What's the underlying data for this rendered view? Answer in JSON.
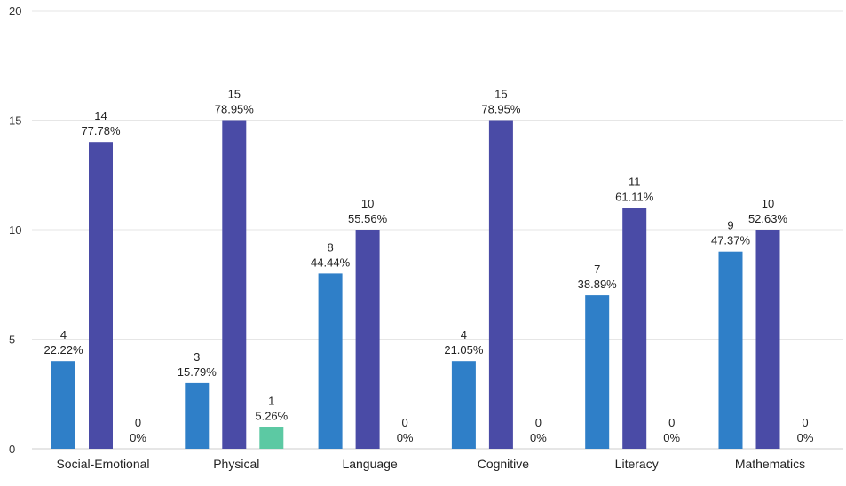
{
  "chart_data": {
    "type": "bar",
    "categories": [
      "Social-Emotional",
      "Physical",
      "Language",
      "Cognitive",
      "Literacy",
      "Mathematics"
    ],
    "series": [
      {
        "color": "#2f7fc8",
        "values": [
          4,
          3,
          8,
          4,
          7,
          9
        ],
        "percent_labels": [
          "22.22%",
          "15.79%",
          "44.44%",
          "21.05%",
          "38.89%",
          "47.37%"
        ]
      },
      {
        "color": "#4a4ba6",
        "values": [
          14,
          15,
          10,
          15,
          11,
          10
        ],
        "percent_labels": [
          "77.78%",
          "78.95%",
          "55.56%",
          "78.95%",
          "61.11%",
          "52.63%"
        ]
      },
      {
        "color": "#5cc9a3",
        "values": [
          0,
          1,
          0,
          0,
          0,
          0
        ],
        "percent_labels": [
          "0%",
          "5.26%",
          "0%",
          "0%",
          "0%",
          "0%"
        ]
      }
    ],
    "ylim": [
      0,
      20
    ],
    "yticks": [
      0,
      5,
      10,
      15,
      20
    ],
    "grid": true,
    "legend": "none"
  }
}
